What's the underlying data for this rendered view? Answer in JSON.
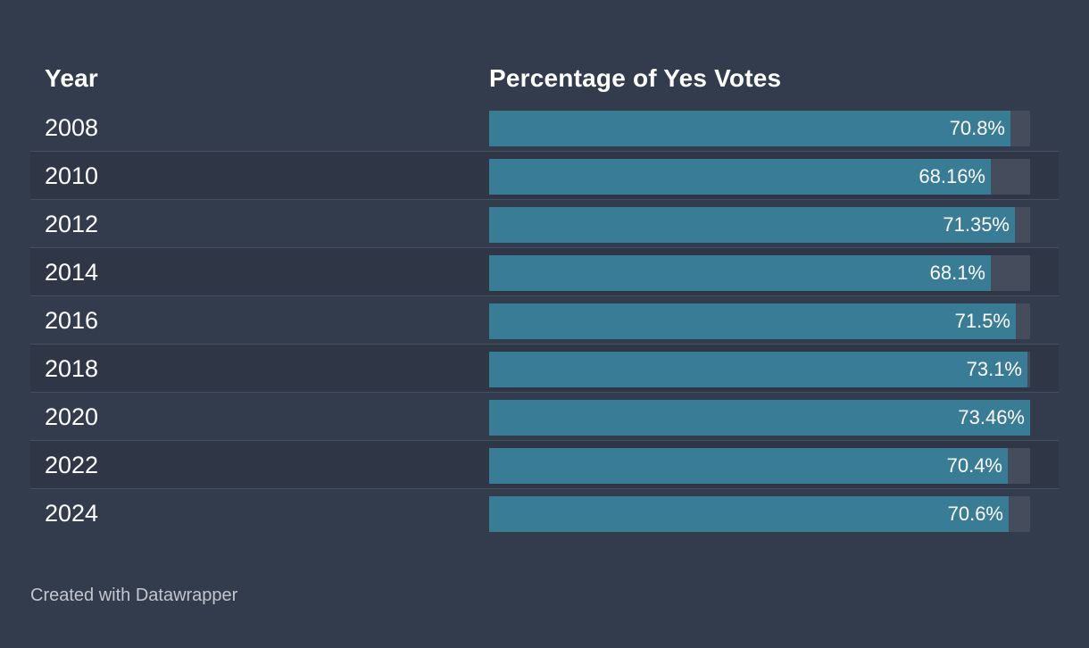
{
  "header": {
    "year": "Year",
    "percentage": "Percentage of Yes Votes"
  },
  "footer": {
    "credit": "Created with Datawrapper"
  },
  "colors": {
    "background": "#333c4c",
    "bar": "#397c96",
    "track": "#454d5c"
  },
  "chart_data": {
    "type": "table",
    "columns": [
      "Year",
      "Percentage of Yes Votes"
    ],
    "ylim": [
      0,
      73.46
    ],
    "rows": [
      {
        "year": "2008",
        "value": 70.8,
        "label": "70.8%"
      },
      {
        "year": "2010",
        "value": 68.16,
        "label": "68.16%"
      },
      {
        "year": "2012",
        "value": 71.35,
        "label": "71.35%"
      },
      {
        "year": "2014",
        "value": 68.1,
        "label": "68.1%"
      },
      {
        "year": "2016",
        "value": 71.5,
        "label": "71.5%"
      },
      {
        "year": "2018",
        "value": 73.1,
        "label": "73.1%"
      },
      {
        "year": "2020",
        "value": 73.46,
        "label": "73.46%"
      },
      {
        "year": "2022",
        "value": 70.4,
        "label": "70.4%"
      },
      {
        "year": "2024",
        "value": 70.6,
        "label": "70.6%"
      }
    ]
  }
}
